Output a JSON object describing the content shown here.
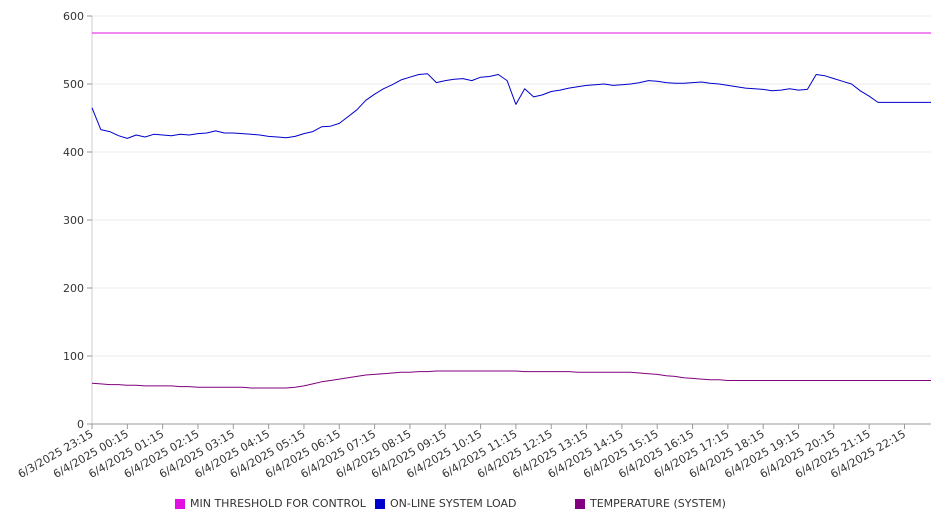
{
  "chart_data": {
    "type": "line",
    "ylim": [
      0,
      600
    ],
    "yticks": [
      0,
      100,
      200,
      300,
      400,
      500,
      600
    ],
    "xtick_labels": [
      "6/3/2025 23:15",
      "6/4/2025 00:15",
      "6/4/2025 01:15",
      "6/4/2025 02:15",
      "6/4/2025 03:15",
      "6/4/2025 04:15",
      "6/4/2025 05:15",
      "6/4/2025 06:15",
      "6/4/2025 07:15",
      "6/4/2025 08:15",
      "6/4/2025 09:15",
      "6/4/2025 10:15",
      "6/4/2025 11:15",
      "6/4/2025 12:15",
      "6/4/2025 13:15",
      "6/4/2025 14:15",
      "6/4/2025 15:15",
      "6/4/2025 16:15",
      "6/4/2025 17:15",
      "6/4/2025 18:15",
      "6/4/2025 19:15",
      "6/4/2025 20:15",
      "6/4/2025 21:15",
      "6/4/2025 22:15"
    ],
    "x": [
      0,
      0.25,
      0.5,
      0.75,
      1,
      1.25,
      1.5,
      1.75,
      2,
      2.25,
      2.5,
      2.75,
      3,
      3.25,
      3.5,
      3.75,
      4,
      4.25,
      4.5,
      4.75,
      5,
      5.25,
      5.5,
      5.75,
      6,
      6.25,
      6.5,
      6.75,
      7,
      7.25,
      7.5,
      7.75,
      8,
      8.25,
      8.5,
      8.75,
      9,
      9.25,
      9.5,
      9.75,
      10,
      10.25,
      10.5,
      10.75,
      11,
      11.25,
      11.5,
      11.75,
      12,
      12.25,
      12.5,
      12.75,
      13,
      13.25,
      13.5,
      13.75,
      14,
      14.25,
      14.5,
      14.75,
      15,
      15.25,
      15.5,
      15.75,
      16,
      16.25,
      16.5,
      16.75,
      17,
      17.25,
      17.5,
      17.75,
      18,
      18.25,
      18.5,
      18.75,
      19,
      19.25,
      19.5,
      19.75,
      20,
      20.25,
      20.5,
      20.75,
      21,
      21.25,
      21.5,
      21.75,
      22,
      22.25,
      22.5,
      22.75,
      23,
      23.25,
      23.5,
      23.75
    ],
    "series": [
      {
        "name": "MIN THRESHOLD FOR CONTROL",
        "color": "#e010e0",
        "values": [
          575,
          575,
          575,
          575,
          575,
          575,
          575,
          575,
          575,
          575,
          575,
          575,
          575,
          575,
          575,
          575,
          575,
          575,
          575,
          575,
          575,
          575,
          575,
          575,
          575,
          575,
          575,
          575,
          575,
          575,
          575,
          575,
          575,
          575,
          575,
          575,
          575,
          575,
          575,
          575,
          575,
          575,
          575,
          575,
          575,
          575,
          575,
          575,
          575,
          575,
          575,
          575,
          575,
          575,
          575,
          575,
          575,
          575,
          575,
          575,
          575,
          575,
          575,
          575,
          575,
          575,
          575,
          575,
          575,
          575,
          575,
          575,
          575,
          575,
          575,
          575,
          575,
          575,
          575,
          575,
          575,
          575,
          575,
          575,
          575,
          575,
          575,
          575,
          575,
          575,
          575,
          575,
          575,
          575,
          575,
          575
        ]
      },
      {
        "name": "ON-LINE SYSTEM LOAD",
        "color": "#0000cc",
        "values": [
          465,
          433,
          430,
          424,
          420,
          425,
          422,
          426,
          425,
          424,
          426,
          425,
          427,
          428,
          431,
          428,
          428,
          427,
          426,
          425,
          423,
          422,
          421,
          423,
          427,
          430,
          437,
          438,
          442,
          452,
          462,
          476,
          485,
          493,
          499,
          506,
          510,
          514,
          515,
          502,
          505,
          507,
          508,
          505,
          510,
          511,
          514,
          505,
          470,
          493,
          481,
          484,
          489,
          491,
          494,
          496,
          498,
          499,
          500,
          498,
          499,
          500,
          502,
          505,
          504,
          502,
          501,
          501,
          502,
          503,
          501,
          500,
          498,
          496,
          494,
          493,
          492,
          490,
          491,
          493,
          491,
          492,
          514,
          512,
          508,
          504,
          500,
          490,
          482,
          473,
          473,
          473,
          473,
          473,
          473,
          473
        ]
      },
      {
        "name": "TEMPERATURE (SYSTEM)",
        "color": "#800080",
        "values": [
          60,
          59,
          58,
          58,
          57,
          57,
          56,
          56,
          56,
          56,
          55,
          55,
          54,
          54,
          54,
          54,
          54,
          54,
          53,
          53,
          53,
          53,
          53,
          54,
          56,
          59,
          62,
          64,
          66,
          68,
          70,
          72,
          73,
          74,
          75,
          76,
          76,
          77,
          77,
          78,
          78,
          78,
          78,
          78,
          78,
          78,
          78,
          78,
          78,
          77,
          77,
          77,
          77,
          77,
          77,
          76,
          76,
          76,
          76,
          76,
          76,
          76,
          75,
          74,
          73,
          71,
          70,
          68,
          67,
          66,
          65,
          65,
          64,
          64,
          64,
          64,
          64,
          64,
          64,
          64,
          64,
          64,
          64,
          64,
          64,
          64,
          64,
          64,
          64,
          64,
          64,
          64,
          64,
          64,
          64,
          64
        ]
      }
    ],
    "legend_position": "bottom",
    "grid": true
  }
}
